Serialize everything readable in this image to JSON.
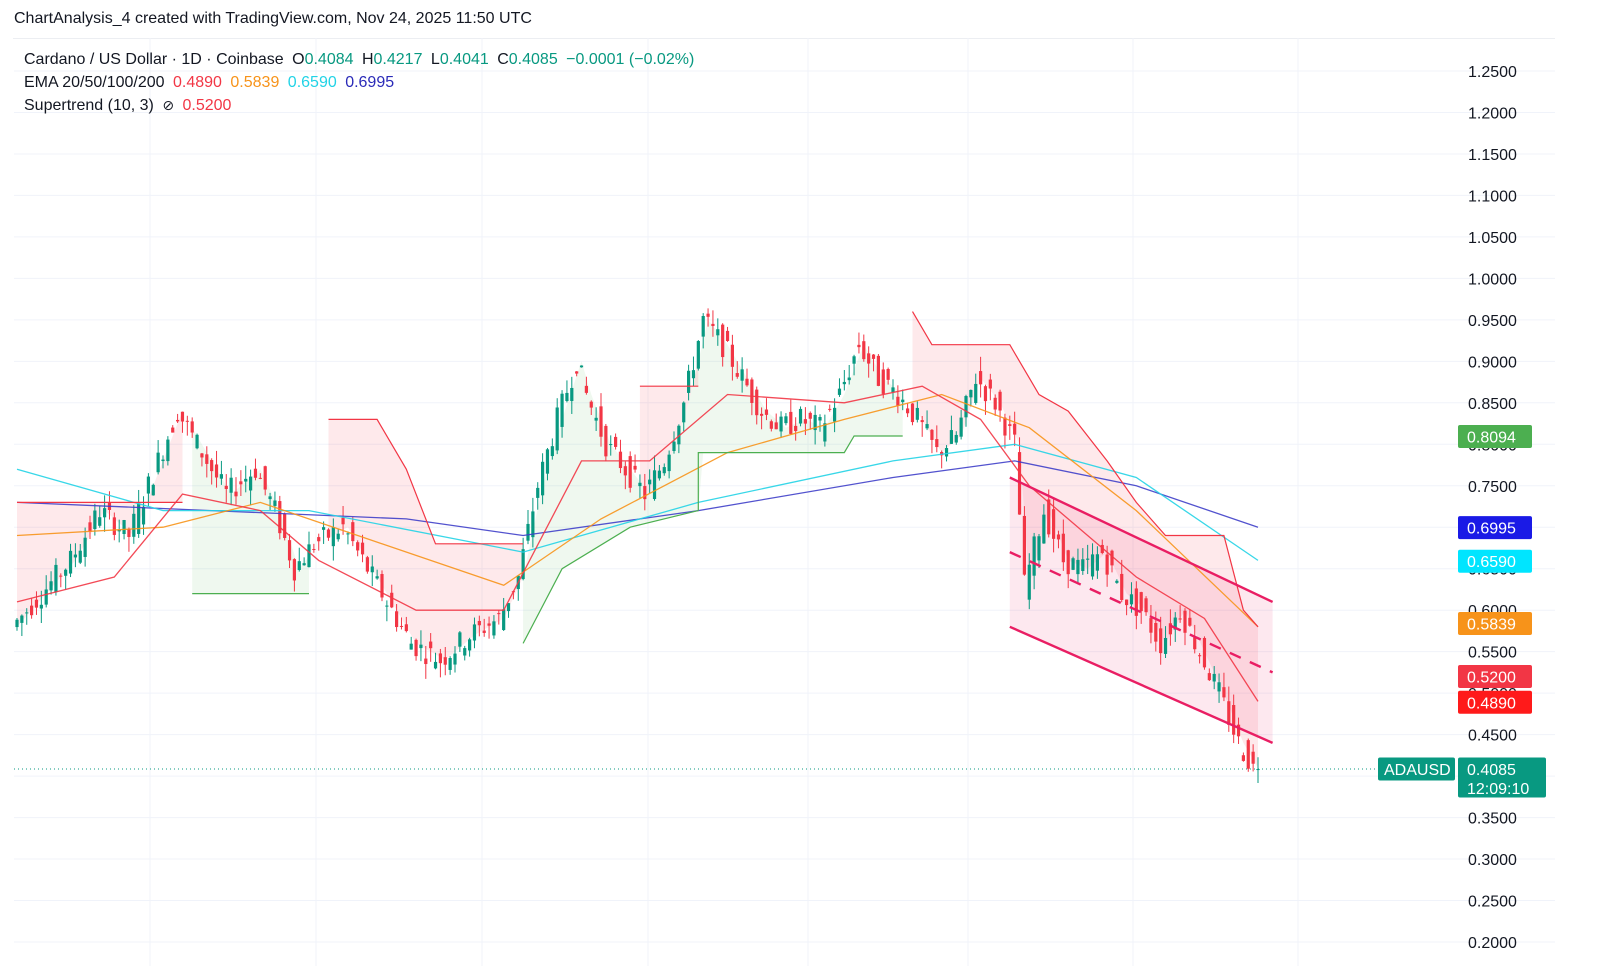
{
  "header": {
    "title": "ChartAnalysis_4 created with TradingView.com, Nov 24, 2025 11:50 UTC"
  },
  "legend": {
    "symbol": "Cardano / US Dollar · 1D · Coinbase",
    "open_label": "O",
    "open": "0.4084",
    "high_label": "H",
    "high": "0.4217",
    "low_label": "L",
    "low": "0.4041",
    "close_label": "C",
    "close": "0.4085",
    "change": "−0.0001 (−0.02%)",
    "ema_label": "EMA 20/50/100/200",
    "ema20": "0.4890",
    "ema50": "0.5839",
    "ema100": "0.6590",
    "ema200": "0.6995",
    "supertrend_label": "Supertrend (10, 3)",
    "supertrend_icon": "slash-circle-icon",
    "supertrend_value": "0.5200"
  },
  "colors": {
    "up": "#089981",
    "down": "#f23645",
    "ema20": "#f23645",
    "ema50": "#f7931a",
    "ema100": "#22d3e6",
    "ema200": "#3f3fc9",
    "channel": "#e91e63",
    "supertrend_up": "#4caf50",
    "supertrend_down": "#f23645"
  },
  "chart_data": {
    "type": "candlestick",
    "symbol_tag": "ADAUSD",
    "countdown": "12:09:10",
    "ylim": [
      0.2,
      1.25
    ],
    "y_ticks": [
      "1.2500",
      "1.2000",
      "1.1500",
      "1.1000",
      "1.0500",
      "1.0000",
      "0.9500",
      "0.9000",
      "0.8500",
      "0.8000",
      "0.7500",
      "0.7000",
      "0.6500",
      "0.6000",
      "0.5500",
      "0.5000",
      "0.4500",
      "0.4000",
      "0.3500",
      "0.3000",
      "0.2500",
      "0.2000"
    ],
    "y_tick_values": [
      1.25,
      1.2,
      1.15,
      1.1,
      1.05,
      1.0,
      0.95,
      0.9,
      0.85,
      0.8,
      0.75,
      0.7,
      0.65,
      0.6,
      0.55,
      0.5,
      0.45,
      0.4,
      0.35,
      0.3,
      0.25,
      0.2
    ],
    "price_tags": [
      {
        "label": "0.8094",
        "value": 0.8094,
        "color": "#4caf50"
      },
      {
        "label": "0.6995",
        "value": 0.6995,
        "color": "#1a1ae6"
      },
      {
        "label": "0.6590",
        "value": 0.659,
        "color": "#00e5ff",
        "dark_text": true
      },
      {
        "label": "0.5839",
        "value": 0.5839,
        "color": "#f7931a"
      },
      {
        "label": "0.5200",
        "value": 0.52,
        "color": "#f23645"
      },
      {
        "label": "0.4890",
        "value": 0.489,
        "color": "#ff1a1a"
      },
      {
        "label": "0.4085",
        "value": 0.4085,
        "color": "#089981"
      }
    ],
    "price_path": [
      [
        0,
        0.58
      ],
      [
        6,
        0.62
      ],
      [
        12,
        0.66
      ],
      [
        18,
        0.72
      ],
      [
        24,
        0.69
      ],
      [
        28,
        0.75
      ],
      [
        34,
        0.84
      ],
      [
        38,
        0.8
      ],
      [
        44,
        0.74
      ],
      [
        50,
        0.77
      ],
      [
        54,
        0.72
      ],
      [
        58,
        0.65
      ],
      [
        62,
        0.68
      ],
      [
        68,
        0.7
      ],
      [
        72,
        0.66
      ],
      [
        78,
        0.6
      ],
      [
        82,
        0.56
      ],
      [
        88,
        0.54
      ],
      [
        94,
        0.57
      ],
      [
        100,
        0.59
      ],
      [
        104,
        0.64
      ],
      [
        108,
        0.75
      ],
      [
        112,
        0.83
      ],
      [
        116,
        0.9
      ],
      [
        118,
        0.86
      ],
      [
        122,
        0.8
      ],
      [
        126,
        0.77
      ],
      [
        130,
        0.74
      ],
      [
        134,
        0.78
      ],
      [
        138,
        0.85
      ],
      [
        142,
        0.95
      ],
      [
        146,
        0.92
      ],
      [
        150,
        0.88
      ],
      [
        154,
        0.84
      ],
      [
        158,
        0.82
      ],
      [
        162,
        0.83
      ],
      [
        166,
        0.82
      ],
      [
        170,
        0.86
      ],
      [
        174,
        0.92
      ],
      [
        178,
        0.88
      ],
      [
        182,
        0.86
      ],
      [
        186,
        0.83
      ],
      [
        190,
        0.79
      ],
      [
        194,
        0.81
      ],
      [
        198,
        0.88
      ],
      [
        202,
        0.85
      ],
      [
        206,
        0.8
      ],
      [
        208,
        0.63
      ],
      [
        212,
        0.72
      ],
      [
        216,
        0.66
      ],
      [
        220,
        0.65
      ],
      [
        224,
        0.67
      ],
      [
        228,
        0.62
      ],
      [
        232,
        0.6
      ],
      [
        236,
        0.56
      ],
      [
        240,
        0.6
      ],
      [
        244,
        0.55
      ],
      [
        248,
        0.5
      ],
      [
        252,
        0.44
      ],
      [
        255,
        0.41
      ]
    ],
    "ema20": [
      [
        0,
        0.61
      ],
      [
        20,
        0.64
      ],
      [
        34,
        0.74
      ],
      [
        50,
        0.72
      ],
      [
        62,
        0.66
      ],
      [
        82,
        0.6
      ],
      [
        100,
        0.6
      ],
      [
        116,
        0.78
      ],
      [
        130,
        0.78
      ],
      [
        146,
        0.86
      ],
      [
        170,
        0.85
      ],
      [
        186,
        0.87
      ],
      [
        198,
        0.83
      ],
      [
        208,
        0.75
      ],
      [
        230,
        0.64
      ],
      [
        244,
        0.59
      ],
      [
        255,
        0.49
      ]
    ],
    "ema50": [
      [
        0,
        0.69
      ],
      [
        30,
        0.7
      ],
      [
        50,
        0.73
      ],
      [
        70,
        0.69
      ],
      [
        100,
        0.63
      ],
      [
        120,
        0.71
      ],
      [
        146,
        0.79
      ],
      [
        170,
        0.83
      ],
      [
        190,
        0.86
      ],
      [
        208,
        0.82
      ],
      [
        230,
        0.72
      ],
      [
        255,
        0.58
      ]
    ],
    "ema100": [
      [
        0,
        0.77
      ],
      [
        30,
        0.72
      ],
      [
        60,
        0.72
      ],
      [
        104,
        0.67
      ],
      [
        140,
        0.73
      ],
      [
        180,
        0.78
      ],
      [
        205,
        0.8
      ],
      [
        230,
        0.76
      ],
      [
        255,
        0.66
      ]
    ],
    "ema200": [
      [
        0,
        0.73
      ],
      [
        40,
        0.72
      ],
      [
        80,
        0.71
      ],
      [
        104,
        0.69
      ],
      [
        140,
        0.72
      ],
      [
        180,
        0.76
      ],
      [
        205,
        0.78
      ],
      [
        230,
        0.75
      ],
      [
        255,
        0.7
      ]
    ],
    "supertrend_up": [
      [
        0,
        0.52
      ],
      [
        36,
        0.52
      ]
    ],
    "supertrend_segments": [
      {
        "trend": "down",
        "points": [
          [
            0,
            0.73
          ],
          [
            34,
            0.73
          ]
        ]
      },
      {
        "trend": "up",
        "points": [
          [
            36,
            0.62
          ],
          [
            60,
            0.62
          ]
        ]
      },
      {
        "trend": "down",
        "points": [
          [
            64,
            0.83
          ],
          [
            74,
            0.83
          ],
          [
            80,
            0.77
          ],
          [
            86,
            0.68
          ],
          [
            104,
            0.68
          ]
        ]
      },
      {
        "trend": "up",
        "points": [
          [
            104,
            0.56
          ],
          [
            112,
            0.65
          ],
          [
            126,
            0.7
          ],
          [
            140,
            0.72
          ]
        ]
      },
      {
        "trend": "down",
        "points": [
          [
            128,
            0.87
          ],
          [
            140,
            0.87
          ]
        ]
      },
      {
        "trend": "up",
        "points": [
          [
            140,
            0.72
          ],
          [
            140,
            0.79
          ],
          [
            170,
            0.79
          ],
          [
            172,
            0.81
          ],
          [
            182,
            0.81
          ]
        ]
      },
      {
        "trend": "down",
        "points": [
          [
            184,
            0.96
          ],
          [
            188,
            0.92
          ],
          [
            204,
            0.92
          ],
          [
            206,
            0.9
          ],
          [
            210,
            0.86
          ],
          [
            216,
            0.84
          ],
          [
            224,
            0.78
          ],
          [
            230,
            0.73
          ],
          [
            236,
            0.69
          ],
          [
            248,
            0.69
          ],
          [
            252,
            0.6
          ],
          [
            255,
            0.58
          ]
        ]
      }
    ],
    "channel": {
      "upper": [
        [
          204,
          0.76
        ],
        [
          258,
          0.61
        ]
      ],
      "lower": [
        [
          204,
          0.58
        ],
        [
          258,
          0.44
        ]
      ],
      "mid": [
        [
          204,
          0.67
        ],
        [
          258,
          0.525
        ]
      ]
    },
    "current_price": 0.4085
  }
}
